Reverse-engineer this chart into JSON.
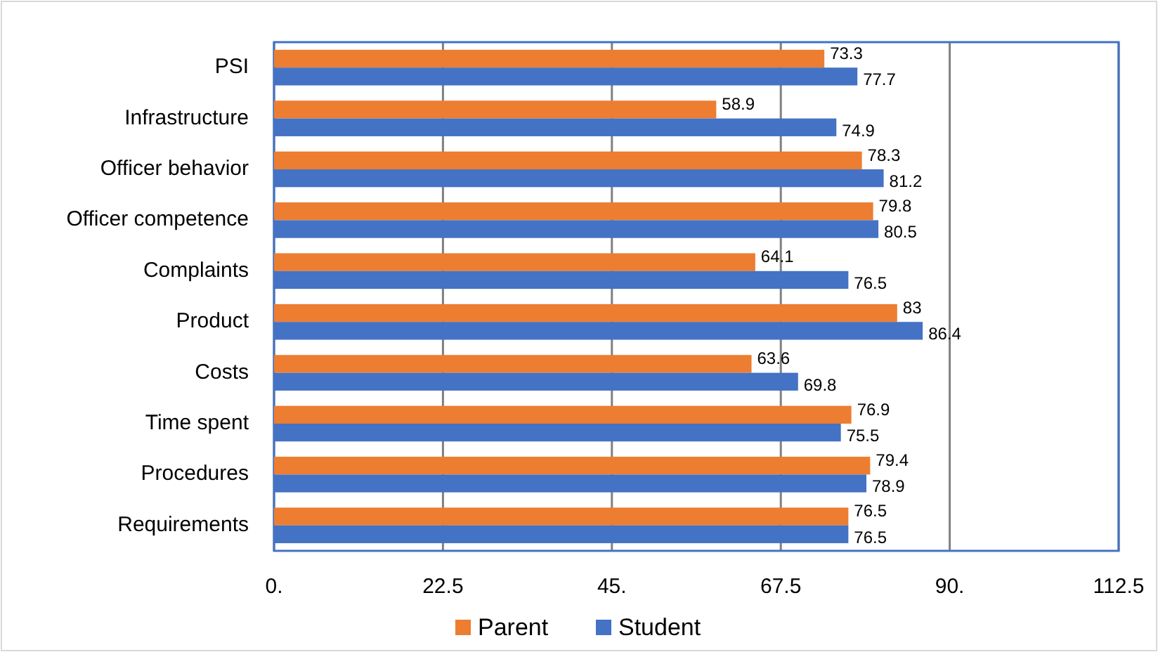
{
  "chart_data": {
    "type": "bar",
    "orientation": "horizontal",
    "categories": [
      "PSI",
      "Infrastructure",
      "Officer behavior",
      "Officer competence",
      "Complaints",
      "Product ",
      "Costs",
      "Time spent",
      "Procedures",
      "Requirements"
    ],
    "series": [
      {
        "name": "Parent",
        "color": "#ed7d31",
        "values": [
          73.3,
          58.9,
          78.3,
          79.8,
          64.1,
          83,
          63.6,
          76.9,
          79.4,
          76.5
        ]
      },
      {
        "name": "Student",
        "color": "#4472c4",
        "values": [
          77.7,
          74.9,
          81.2,
          80.5,
          76.5,
          86.4,
          69.8,
          75.5,
          78.9,
          76.5
        ]
      }
    ],
    "xlim": [
      0,
      112.5
    ],
    "xticks": [
      {
        "value": 0,
        "label": "0."
      },
      22.5,
      {
        "value": 45,
        "label": "45."
      },
      67.5,
      {
        "value": 90,
        "label": "90."
      },
      112.5
    ],
    "grid": "x",
    "legend": "bottom",
    "data_labels": true
  }
}
